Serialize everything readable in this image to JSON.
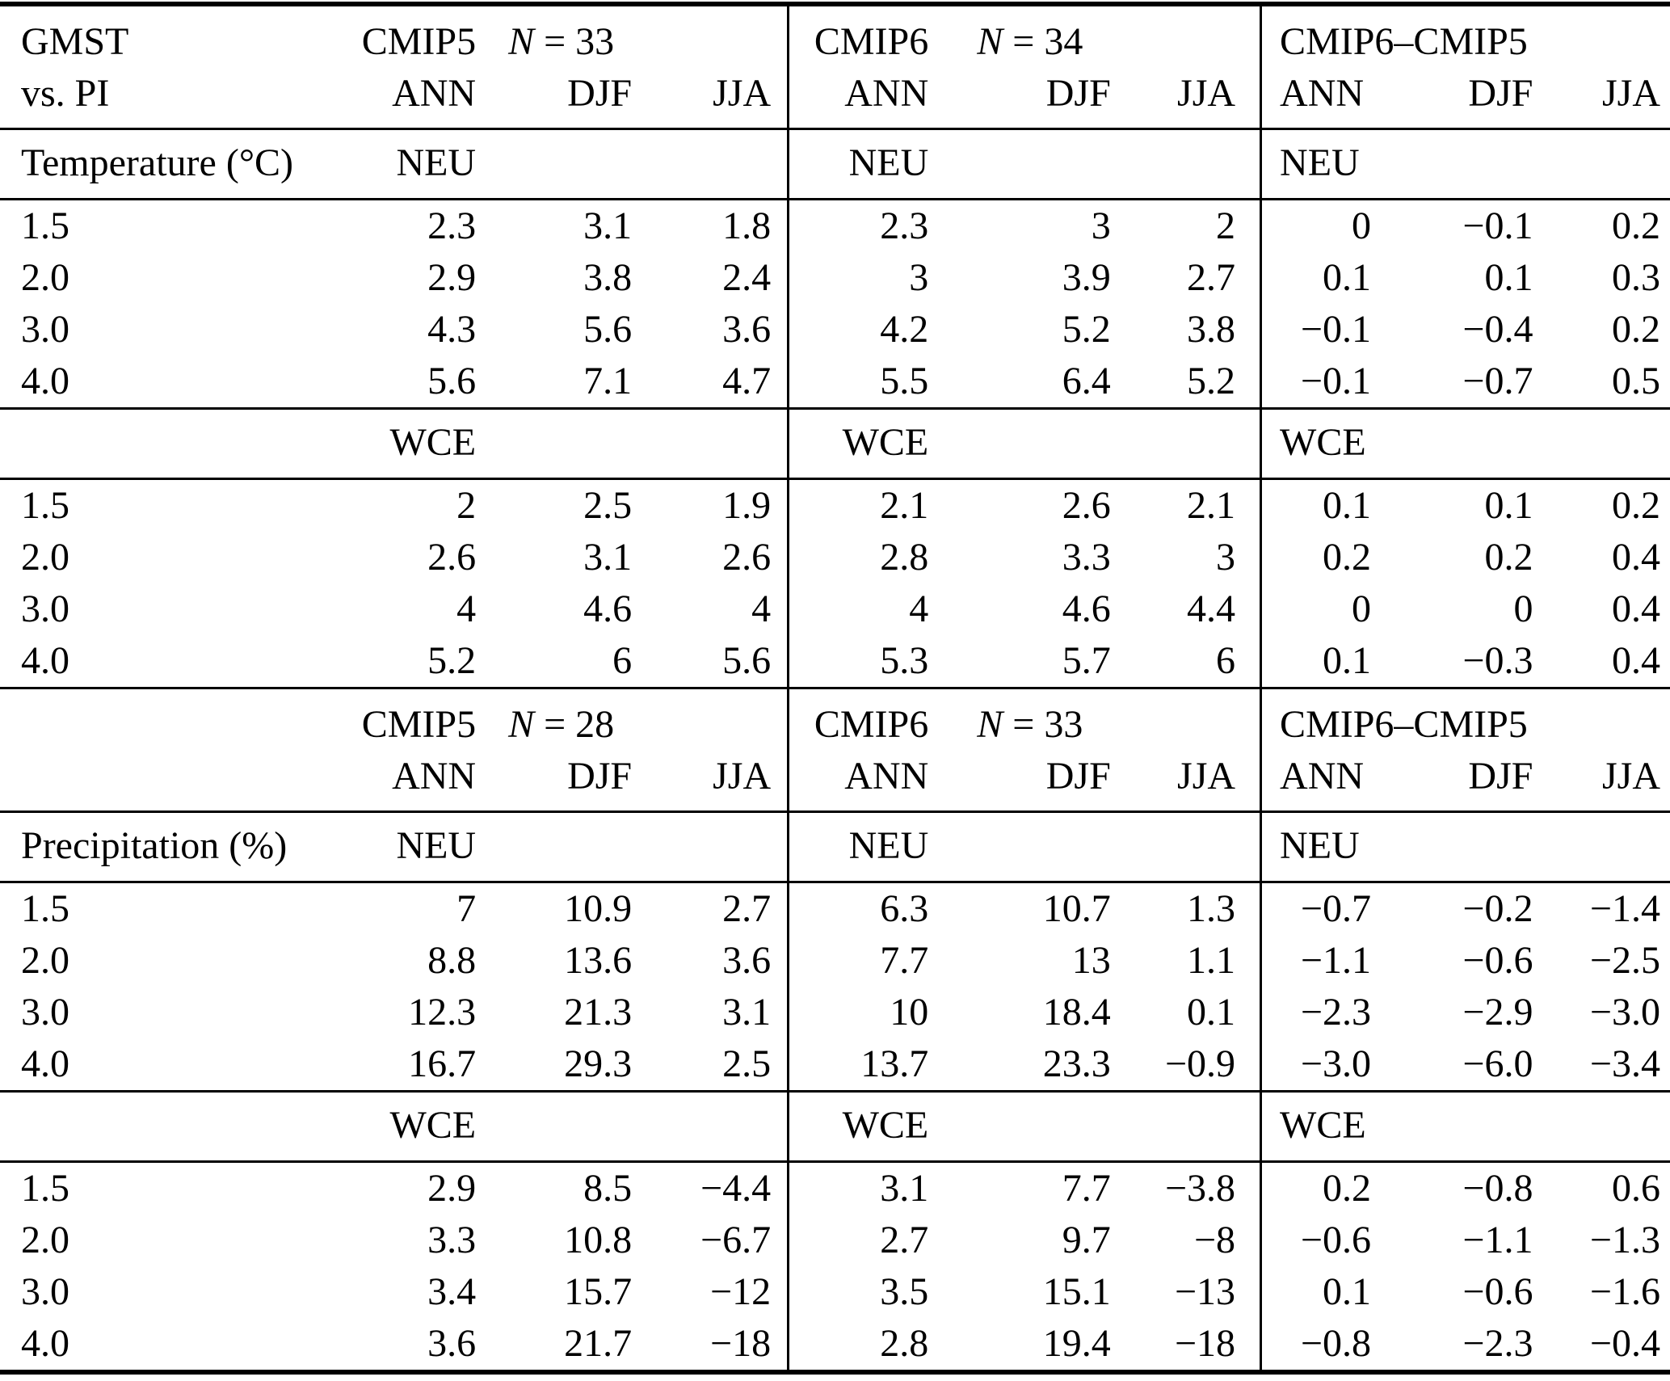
{
  "table": {
    "corner": {
      "line1": "GMST",
      "line2": "vs. PI"
    },
    "seasons": [
      "ANN",
      "DJF",
      "JJA"
    ],
    "blocks": [
      {
        "metric": "Temperature (°C)",
        "groups": [
          {
            "model": "CMIP5",
            "n_var": "N",
            "n_val": " = 33"
          },
          {
            "model": "CMIP6",
            "n_var": "N",
            "n_val": " = 34"
          },
          {
            "model": "CMIP6–CMIP5"
          }
        ],
        "sections": [
          {
            "region": "NEU",
            "rows": [
              {
                "gmst": "1.5",
                "values": [
                  "2.3",
                  "3.1",
                  "1.8",
                  "2.3",
                  "3",
                  "2",
                  "0",
                  "−0.1",
                  "0.2"
                ]
              },
              {
                "gmst": "2.0",
                "values": [
                  "2.9",
                  "3.8",
                  "2.4",
                  "3",
                  "3.9",
                  "2.7",
                  "0.1",
                  "0.1",
                  "0.3"
                ]
              },
              {
                "gmst": "3.0",
                "values": [
                  "4.3",
                  "5.6",
                  "3.6",
                  "4.2",
                  "5.2",
                  "3.8",
                  "−0.1",
                  "−0.4",
                  "0.2"
                ]
              },
              {
                "gmst": "4.0",
                "values": [
                  "5.6",
                  "7.1",
                  "4.7",
                  "5.5",
                  "6.4",
                  "5.2",
                  "−0.1",
                  "−0.7",
                  "0.5"
                ]
              }
            ]
          },
          {
            "region": "WCE",
            "rows": [
              {
                "gmst": "1.5",
                "values": [
                  "2",
                  "2.5",
                  "1.9",
                  "2.1",
                  "2.6",
                  "2.1",
                  "0.1",
                  "0.1",
                  "0.2"
                ]
              },
              {
                "gmst": "2.0",
                "values": [
                  "2.6",
                  "3.1",
                  "2.6",
                  "2.8",
                  "3.3",
                  "3",
                  "0.2",
                  "0.2",
                  "0.4"
                ]
              },
              {
                "gmst": "3.0",
                "values": [
                  "4",
                  "4.6",
                  "4",
                  "4",
                  "4.6",
                  "4.4",
                  "0",
                  "0",
                  "0.4"
                ]
              },
              {
                "gmst": "4.0",
                "values": [
                  "5.2",
                  "6",
                  "5.6",
                  "5.3",
                  "5.7",
                  "6",
                  "0.1",
                  "−0.3",
                  "0.4"
                ]
              }
            ]
          }
        ]
      },
      {
        "metric": "Precipitation (%)",
        "groups": [
          {
            "model": "CMIP5",
            "n_var": "N",
            "n_val": " = 28"
          },
          {
            "model": "CMIP6",
            "n_var": "N",
            "n_val": " = 33"
          },
          {
            "model": "CMIP6–CMIP5"
          }
        ],
        "sections": [
          {
            "region": "NEU",
            "rows": [
              {
                "gmst": "1.5",
                "values": [
                  "7",
                  "10.9",
                  "2.7",
                  "6.3",
                  "10.7",
                  "1.3",
                  "−0.7",
                  "−0.2",
                  "−1.4"
                ]
              },
              {
                "gmst": "2.0",
                "values": [
                  "8.8",
                  "13.6",
                  "3.6",
                  "7.7",
                  "13",
                  "1.1",
                  "−1.1",
                  "−0.6",
                  "−2.5"
                ]
              },
              {
                "gmst": "3.0",
                "values": [
                  "12.3",
                  "21.3",
                  "3.1",
                  "10",
                  "18.4",
                  "0.1",
                  "−2.3",
                  "−2.9",
                  "−3.0"
                ]
              },
              {
                "gmst": "4.0",
                "values": [
                  "16.7",
                  "29.3",
                  "2.5",
                  "13.7",
                  "23.3",
                  "−0.9",
                  "−3.0",
                  "−6.0",
                  "−3.4"
                ]
              }
            ]
          },
          {
            "region": "WCE",
            "rows": [
              {
                "gmst": "1.5",
                "values": [
                  "2.9",
                  "8.5",
                  "−4.4",
                  "3.1",
                  "7.7",
                  "−3.8",
                  "0.2",
                  "−0.8",
                  "0.6"
                ]
              },
              {
                "gmst": "2.0",
                "values": [
                  "3.3",
                  "10.8",
                  "−6.7",
                  "2.7",
                  "9.7",
                  "−8",
                  "−0.6",
                  "−1.1",
                  "−1.3"
                ]
              },
              {
                "gmst": "3.0",
                "values": [
                  "3.4",
                  "15.7",
                  "−12",
                  "3.5",
                  "15.1",
                  "−13",
                  "0.1",
                  "−0.6",
                  "−1.6"
                ]
              },
              {
                "gmst": "4.0",
                "values": [
                  "3.6",
                  "21.7",
                  "−18",
                  "2.8",
                  "19.4",
                  "−18",
                  "−0.8",
                  "−2.3",
                  "−0.4"
                ]
              }
            ]
          }
        ]
      }
    ]
  }
}
